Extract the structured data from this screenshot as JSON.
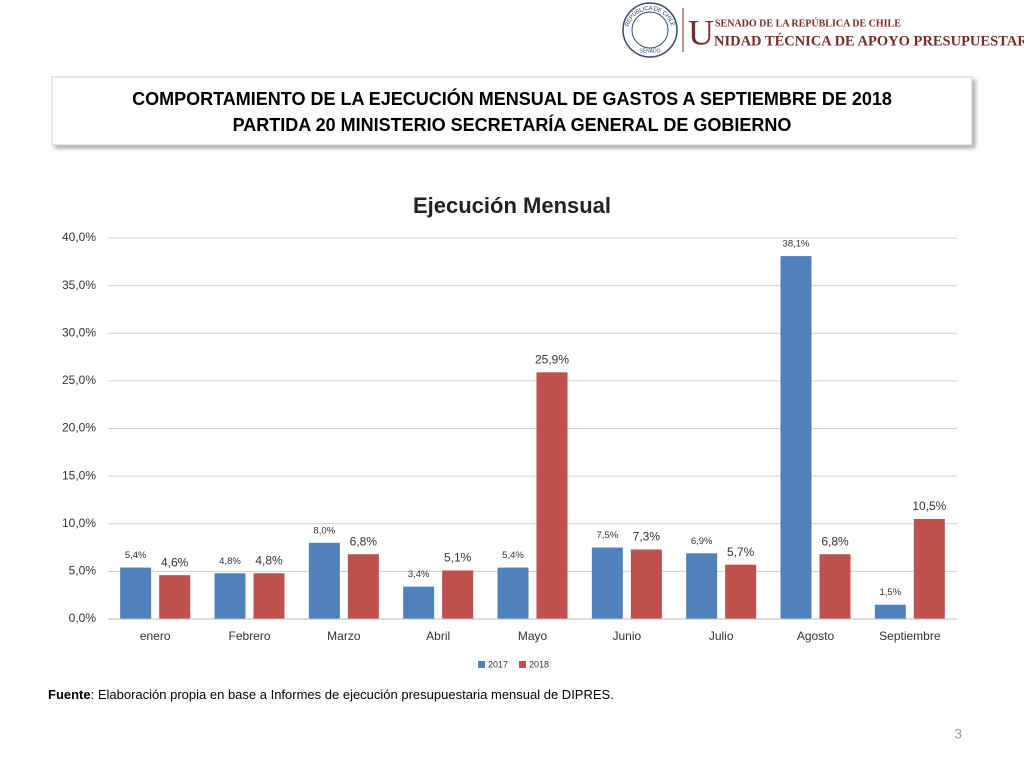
{
  "header": {
    "seal_top": "REPÚBLICA DE CHILE",
    "seal_bottom": "SENADO",
    "senate": "SENADO DE LA REPÚBLICA DE CHILE",
    "unit_initial": "U",
    "unit_rest": "NIDAD TÉCNICA DE APOYO PRESUPUESTARIO"
  },
  "title_box": {
    "line1": "COMPORTAMIENTO DE LA EJECUCIÓN MENSUAL DE GASTOS A SEPTIEMBRE DE 2018",
    "line2": "PARTIDA 20 MINISTERIO SECRETARÍA GENERAL DE GOBIERNO"
  },
  "chart_data": {
    "type": "bar",
    "title": "Ejecución Mensual",
    "categories": [
      "enero",
      "Febrero",
      "Marzo",
      "Abril",
      "Mayo",
      "Junio",
      "Julio",
      "Agosto",
      "Septiembre"
    ],
    "series": [
      {
        "name": "2017",
        "color": "#4f81bd",
        "values": [
          5.4,
          4.8,
          8.0,
          3.4,
          5.4,
          7.5,
          6.9,
          38.1,
          1.5
        ],
        "value_labels": [
          "5,4%",
          "4,8%",
          "8,0%",
          "3,4%",
          "5,4%",
          "7,5%",
          "6,9%",
          "38,1%",
          "1,5%"
        ]
      },
      {
        "name": "2018",
        "color": "#c0504d",
        "values": [
          4.6,
          4.8,
          6.8,
          5.1,
          25.9,
          7.3,
          5.7,
          6.8,
          10.5
        ],
        "value_labels": [
          "4,6%",
          "4,8%",
          "6,8%",
          "5,1%",
          "25,9%",
          "7,3%",
          "5,7%",
          "6,8%",
          "10,5%"
        ]
      }
    ],
    "ylim": [
      0,
      40
    ],
    "yticks": [
      {
        "value": 0,
        "label": "0,0%"
      },
      {
        "value": 5,
        "label": "5,0%"
      },
      {
        "value": 10,
        "label": "10,0%"
      },
      {
        "value": 15,
        "label": "15,0%"
      },
      {
        "value": 20,
        "label": "20,0%"
      },
      {
        "value": 25,
        "label": "25,0%"
      },
      {
        "value": 30,
        "label": "30,0%"
      },
      {
        "value": 35,
        "label": "35,0%"
      },
      {
        "value": 40,
        "label": "40,0%"
      }
    ],
    "grid": true,
    "legend": "bottom"
  },
  "footer": {
    "source_label": "Fuente",
    "source_text": ": Elaboración propia en base  a Informes de ejecución presupuestaria mensual de DIPRES."
  },
  "page_number": 3
}
